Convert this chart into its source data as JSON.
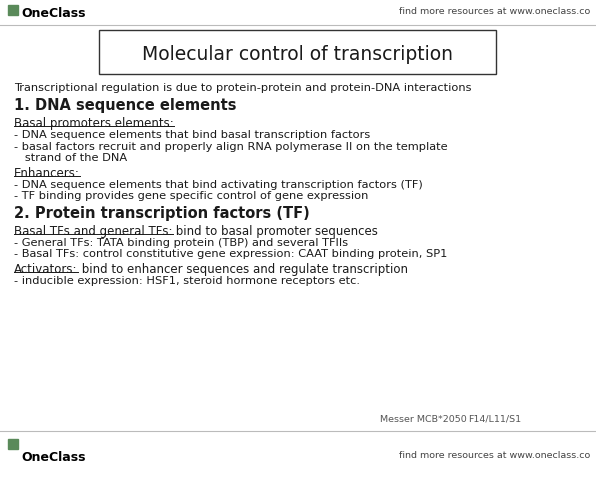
{
  "bg_color": "#ffffff",
  "border_color": "#000000",
  "title": "Molecular control of transcription",
  "subtitle": "Transcriptional regulation is due to protein-protein and protein-DNA interactions",
  "header1": "1. DNA sequence elements",
  "subheader1": "Basal promoters elements:",
  "bullet1a": "- DNA sequence elements that bind basal transcription factors",
  "bullet1b": "- basal factors recruit and properly align RNA polymerase II on the template",
  "bullet1b2": "   strand of the DNA",
  "subheader2": "Enhancers:",
  "bullet2a": "- DNA sequence elements that bind activating transcription factors (TF)",
  "bullet2b": "- TF binding provides gene specific control of gene expression",
  "header2": "2. Protein transcription factors (TF)",
  "subheader3_bold": "Basal TFs and general TFs:",
  "subheader3_normal": " bind to basal promoter sequences",
  "bullet3a": "- General TFs: TATA binding protein (TBP) and several TFIIs",
  "bullet3b": "- Basal TFs: control constitutive gene expression: CAAT binding protein, SP1",
  "subheader4_bold": "Activators:",
  "subheader4_normal": " bind to enhancer sequences and regulate transcription",
  "bullet4a": "- inducible expression: HSF1, steroid hormone receptors etc.",
  "footer_left": "Messer MCB*2050",
  "footer_right": "F14/L11/S1",
  "oneclass_text": "OneClass",
  "find_text": "find more resources at www.oneclass.co",
  "header_color": "#1a1a1a",
  "text_color": "#1a1a1a",
  "footer_color": "#555555",
  "green_color": "#5a8a5a"
}
